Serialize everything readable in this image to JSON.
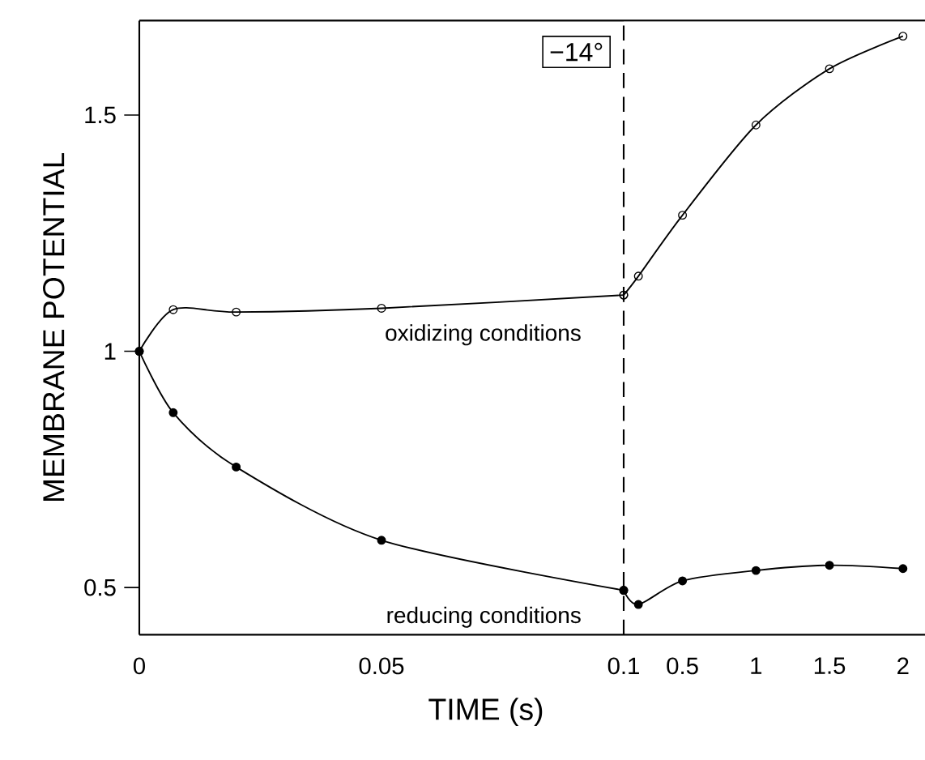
{
  "chart_data": [
    {
      "type": "line",
      "xlabel": "TIME (s)",
      "ylabel": "MEMBRANE POTENTIAL",
      "marker": "circle",
      "line_style": "solid",
      "grid": false,
      "xlim": [
        0,
        0.1
      ],
      "ylim": [
        0.4,
        1.7
      ],
      "xticks": [
        0,
        0.05,
        0.1
      ],
      "yticks": [
        0.5,
        1,
        1.5
      ],
      "annotations": [
        "−14°"
      ],
      "ref_lines": [
        {
          "axis": "x",
          "value": 0.1,
          "line_style": "dashed",
          "color": "#000000"
        }
      ],
      "series": [
        {
          "name": "oxidizing conditions",
          "color": "#000000",
          "x": [
            0,
            0.007,
            0.02,
            0.05,
            0.1
          ],
          "values": [
            1,
            1.088,
            1.083,
            1.091,
            1.119
          ]
        },
        {
          "name": "reducing conditions",
          "color": "#000000",
          "x": [
            0,
            0.007,
            0.02,
            0.05,
            0.1
          ],
          "values": [
            1,
            0.87,
            0.755,
            0.6,
            0.494
          ]
        }
      ]
    },
    {
      "type": "line",
      "marker": "circle",
      "line_style": "solid",
      "grid": false,
      "tick_labels": "x",
      "xlim": [
        0.1,
        2.15
      ],
      "ylim": [
        0.4,
        1.7
      ],
      "xticks": [
        0.5,
        1,
        1.5,
        2
      ],
      "yticks": [
        0.5,
        1,
        1.5
      ],
      "series": [
        {
          "color": "#000000",
          "x": [
            0.1,
            0.2,
            0.5,
            1,
            1.5,
            2
          ],
          "values": [
            1.119,
            1.159,
            1.288,
            1.479,
            1.598,
            1.667
          ]
        },
        {
          "color": "#000000",
          "x": [
            0.1,
            0.2,
            0.5,
            1,
            1.5,
            2
          ],
          "values": [
            0.494,
            0.464,
            0.514,
            0.536,
            0.547,
            0.54
          ]
        }
      ]
    }
  ]
}
